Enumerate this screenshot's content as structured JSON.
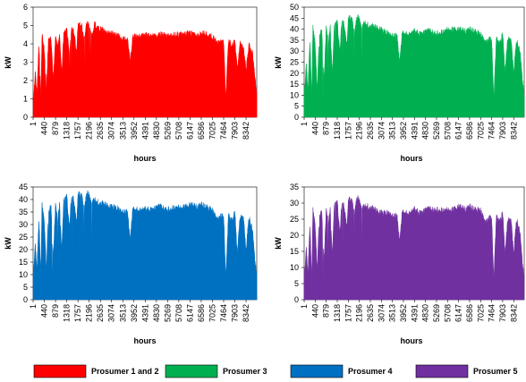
{
  "chart_data": [
    {
      "type": "area",
      "id": "p12",
      "series_name": "Prosumer 1 and 2",
      "color": "#ff0000",
      "ylabel": "kW",
      "xlabel": "hours",
      "ylim": [
        0,
        6
      ],
      "yticks": [
        0,
        1,
        2,
        3,
        4,
        5,
        6
      ],
      "xticks": [
        "1",
        "440",
        "879",
        "1318",
        "1757",
        "2196",
        "2635",
        "3074",
        "3513",
        "3952",
        "4391",
        "4830",
        "5269",
        "5708",
        "6147",
        "6586",
        "7025",
        "7464",
        "7903",
        "8342"
      ],
      "x_max": 8760,
      "profile": [
        [
          1,
          0.5
        ],
        [
          90,
          2.5
        ],
        [
          150,
          1.2
        ],
        [
          230,
          4.1
        ],
        [
          300,
          1.0
        ],
        [
          350,
          4.6
        ],
        [
          440,
          3.6
        ],
        [
          520,
          1.5
        ],
        [
          600,
          4.1
        ],
        [
          700,
          4.3
        ],
        [
          790,
          2.0
        ],
        [
          879,
          4.5
        ],
        [
          960,
          3.8
        ],
        [
          1040,
          4.5
        ],
        [
          1120,
          2.3
        ],
        [
          1200,
          4.5
        ],
        [
          1318,
          4.8
        ],
        [
          1420,
          3.4
        ],
        [
          1500,
          4.8
        ],
        [
          1600,
          4.6
        ],
        [
          1700,
          3.5
        ],
        [
          1757,
          5.0
        ],
        [
          1900,
          5.1
        ],
        [
          2000,
          4.1
        ],
        [
          2100,
          5.2
        ],
        [
          2196,
          5.0
        ],
        [
          2300,
          4.4
        ],
        [
          2400,
          5.1
        ],
        [
          2500,
          4.9
        ],
        [
          2635,
          4.8
        ],
        [
          2800,
          4.7
        ],
        [
          3000,
          4.6
        ],
        [
          3200,
          4.5
        ],
        [
          3400,
          4.4
        ],
        [
          3513,
          4.3
        ],
        [
          3700,
          4.2
        ],
        [
          3800,
          3.0
        ],
        [
          3900,
          4.4
        ],
        [
          3952,
          4.4
        ],
        [
          4200,
          4.4
        ],
        [
          4391,
          4.5
        ],
        [
          4600,
          4.4
        ],
        [
          4830,
          4.5
        ],
        [
          5000,
          4.5
        ],
        [
          5269,
          4.4
        ],
        [
          5500,
          4.5
        ],
        [
          5708,
          4.5
        ],
        [
          5900,
          4.5
        ],
        [
          6147,
          4.6
        ],
        [
          6400,
          4.4
        ],
        [
          6586,
          4.6
        ],
        [
          6800,
          4.5
        ],
        [
          7025,
          4.4
        ],
        [
          7200,
          4.0
        ],
        [
          7464,
          4.2
        ],
        [
          7550,
          1.0
        ],
        [
          7650,
          4.2
        ],
        [
          7800,
          3.9
        ],
        [
          7903,
          4.2
        ],
        [
          8000,
          2.5
        ],
        [
          8100,
          4.0
        ],
        [
          8250,
          3.8
        ],
        [
          8342,
          2.5
        ],
        [
          8450,
          4.0
        ],
        [
          8600,
          3.5
        ],
        [
          8700,
          2.0
        ],
        [
          8760,
          1.2
        ]
      ]
    },
    {
      "type": "area",
      "id": "p3",
      "series_name": "Prosumer 3",
      "color": "#00b050",
      "ylabel": "kW",
      "xlabel": "hours",
      "ylim": [
        0,
        50
      ],
      "yticks": [
        0,
        5,
        10,
        15,
        20,
        25,
        30,
        35,
        40,
        45,
        50
      ],
      "xticks": [
        "1",
        "440",
        "879",
        "1318",
        "1757",
        "2196",
        "2635",
        "3074",
        "3513",
        "3952",
        "4391",
        "4830",
        "5269",
        "5708",
        "6147",
        "6586",
        "7025",
        "7464",
        "7903",
        "8342"
      ],
      "x_max": 8760,
      "profile": [
        [
          1,
          10
        ],
        [
          90,
          24
        ],
        [
          150,
          12
        ],
        [
          230,
          36
        ],
        [
          300,
          9
        ],
        [
          350,
          41
        ],
        [
          440,
          33
        ],
        [
          520,
          12
        ],
        [
          600,
          37
        ],
        [
          700,
          39
        ],
        [
          790,
          17
        ],
        [
          879,
          41
        ],
        [
          960,
          34
        ],
        [
          1040,
          41
        ],
        [
          1120,
          20
        ],
        [
          1200,
          41
        ],
        [
          1318,
          43
        ],
        [
          1420,
          30
        ],
        [
          1500,
          44
        ],
        [
          1600,
          42
        ],
        [
          1700,
          32
        ],
        [
          1757,
          45
        ],
        [
          1900,
          45
        ],
        [
          2000,
          37
        ],
        [
          2100,
          46
        ],
        [
          2196,
          45
        ],
        [
          2300,
          40
        ],
        [
          2400,
          43
        ],
        [
          2500,
          42
        ],
        [
          2635,
          42
        ],
        [
          2800,
          41
        ],
        [
          3000,
          40
        ],
        [
          3200,
          39
        ],
        [
          3400,
          38
        ],
        [
          3513,
          37
        ],
        [
          3700,
          37
        ],
        [
          3800,
          25
        ],
        [
          3900,
          38
        ],
        [
          3952,
          38
        ],
        [
          4200,
          38
        ],
        [
          4391,
          39
        ],
        [
          4600,
          38
        ],
        [
          4830,
          39
        ],
        [
          5000,
          39
        ],
        [
          5269,
          38
        ],
        [
          5500,
          39
        ],
        [
          5708,
          40
        ],
        [
          5900,
          40
        ],
        [
          6147,
          40
        ],
        [
          6400,
          39
        ],
        [
          6586,
          40
        ],
        [
          6800,
          39
        ],
        [
          7025,
          38
        ],
        [
          7200,
          34
        ],
        [
          7464,
          36
        ],
        [
          7550,
          8
        ],
        [
          7650,
          36
        ],
        [
          7800,
          33
        ],
        [
          7903,
          38
        ],
        [
          8000,
          20
        ],
        [
          8100,
          36
        ],
        [
          8250,
          34
        ],
        [
          8342,
          20
        ],
        [
          8450,
          35
        ],
        [
          8600,
          30
        ],
        [
          8700,
          15
        ],
        [
          8760,
          10
        ]
      ]
    },
    {
      "type": "area",
      "id": "p4",
      "series_name": "Prosumer 4",
      "color": "#0070c0",
      "ylabel": "kW",
      "xlabel": "hours",
      "ylim": [
        0,
        45
      ],
      "yticks": [
        0,
        5,
        10,
        15,
        20,
        25,
        30,
        35,
        40,
        45
      ],
      "xticks": [
        "1",
        "440",
        "879",
        "1318",
        "1757",
        "2196",
        "2635",
        "3074",
        "3513",
        "3952",
        "4391",
        "4830",
        "5269",
        "5708",
        "6147",
        "6586",
        "7025",
        "7464",
        "7903",
        "8342"
      ],
      "x_max": 8760,
      "profile": [
        [
          1,
          10
        ],
        [
          90,
          22
        ],
        [
          150,
          12
        ],
        [
          230,
          33
        ],
        [
          300,
          9
        ],
        [
          350,
          38
        ],
        [
          440,
          31
        ],
        [
          520,
          12
        ],
        [
          600,
          35
        ],
        [
          700,
          37
        ],
        [
          790,
          17
        ],
        [
          879,
          38
        ],
        [
          960,
          32
        ],
        [
          1040,
          38
        ],
        [
          1120,
          20
        ],
        [
          1200,
          39
        ],
        [
          1318,
          41
        ],
        [
          1420,
          29
        ],
        [
          1500,
          41
        ],
        [
          1600,
          40
        ],
        [
          1700,
          30
        ],
        [
          1757,
          42
        ],
        [
          1900,
          42
        ],
        [
          2000,
          35
        ],
        [
          2100,
          43
        ],
        [
          2196,
          42
        ],
        [
          2300,
          38
        ],
        [
          2400,
          40
        ],
        [
          2500,
          39
        ],
        [
          2635,
          39
        ],
        [
          2800,
          38
        ],
        [
          3000,
          37
        ],
        [
          3200,
          37
        ],
        [
          3400,
          36
        ],
        [
          3513,
          35
        ],
        [
          3700,
          35
        ],
        [
          3800,
          24
        ],
        [
          3900,
          36
        ],
        [
          3952,
          36
        ],
        [
          4200,
          36
        ],
        [
          4391,
          36
        ],
        [
          4600,
          36
        ],
        [
          4830,
          37
        ],
        [
          5000,
          37
        ],
        [
          5269,
          36
        ],
        [
          5500,
          37
        ],
        [
          5708,
          37
        ],
        [
          5900,
          37
        ],
        [
          6147,
          38
        ],
        [
          6400,
          37
        ],
        [
          6586,
          38
        ],
        [
          6800,
          37
        ],
        [
          7025,
          36
        ],
        [
          7200,
          32
        ],
        [
          7464,
          34
        ],
        [
          7550,
          8
        ],
        [
          7650,
          34
        ],
        [
          7800,
          31
        ],
        [
          7903,
          35
        ],
        [
          8000,
          18
        ],
        [
          8100,
          33
        ],
        [
          8250,
          32
        ],
        [
          8342,
          19
        ],
        [
          8450,
          33
        ],
        [
          8600,
          28
        ],
        [
          8700,
          14
        ],
        [
          8760,
          10
        ]
      ]
    },
    {
      "type": "area",
      "id": "p5",
      "series_name": "Prosumer 5",
      "color": "#7030a0",
      "ylabel": "kW",
      "xlabel": "hours",
      "ylim": [
        0,
        35
      ],
      "yticks": [
        0,
        5,
        10,
        15,
        20,
        25,
        30,
        35
      ],
      "xticks": [
        "1",
        "440",
        "879",
        "1318",
        "1757",
        "2196",
        "2635",
        "3074",
        "3513",
        "3952",
        "4391",
        "4830",
        "5269",
        "5708",
        "6147",
        "6586",
        "7025",
        "7464",
        "7903",
        "8342"
      ],
      "x_max": 8760,
      "profile": [
        [
          1,
          7
        ],
        [
          90,
          16
        ],
        [
          150,
          8
        ],
        [
          230,
          24
        ],
        [
          300,
          6
        ],
        [
          350,
          28
        ],
        [
          440,
          23
        ],
        [
          520,
          9
        ],
        [
          600,
          26
        ],
        [
          700,
          27
        ],
        [
          790,
          12
        ],
        [
          879,
          28
        ],
        [
          960,
          24
        ],
        [
          1040,
          28
        ],
        [
          1120,
          14
        ],
        [
          1200,
          29
        ],
        [
          1318,
          30
        ],
        [
          1420,
          21
        ],
        [
          1500,
          30
        ],
        [
          1600,
          29
        ],
        [
          1700,
          22
        ],
        [
          1757,
          31
        ],
        [
          1900,
          31
        ],
        [
          2000,
          26
        ],
        [
          2100,
          32
        ],
        [
          2196,
          31
        ],
        [
          2300,
          28
        ],
        [
          2400,
          29
        ],
        [
          2500,
          29
        ],
        [
          2635,
          29
        ],
        [
          2800,
          28
        ],
        [
          3000,
          27
        ],
        [
          3200,
          27
        ],
        [
          3400,
          27
        ],
        [
          3513,
          26
        ],
        [
          3700,
          26
        ],
        [
          3800,
          18
        ],
        [
          3900,
          27
        ],
        [
          3952,
          27
        ],
        [
          4200,
          27
        ],
        [
          4391,
          28
        ],
        [
          4600,
          27
        ],
        [
          4830,
          28
        ],
        [
          5000,
          28
        ],
        [
          5269,
          28
        ],
        [
          5500,
          28
        ],
        [
          5708,
          28
        ],
        [
          5900,
          28
        ],
        [
          6147,
          29
        ],
        [
          6400,
          28
        ],
        [
          6586,
          29
        ],
        [
          6800,
          28
        ],
        [
          7025,
          28
        ],
        [
          7200,
          24
        ],
        [
          7464,
          26
        ],
        [
          7550,
          6
        ],
        [
          7650,
          26
        ],
        [
          7800,
          24
        ],
        [
          7903,
          27
        ],
        [
          8000,
          14
        ],
        [
          8100,
          25
        ],
        [
          8250,
          24
        ],
        [
          8342,
          14
        ],
        [
          8450,
          25
        ],
        [
          8600,
          21
        ],
        [
          8700,
          10
        ],
        [
          8760,
          7
        ]
      ]
    }
  ]
}
